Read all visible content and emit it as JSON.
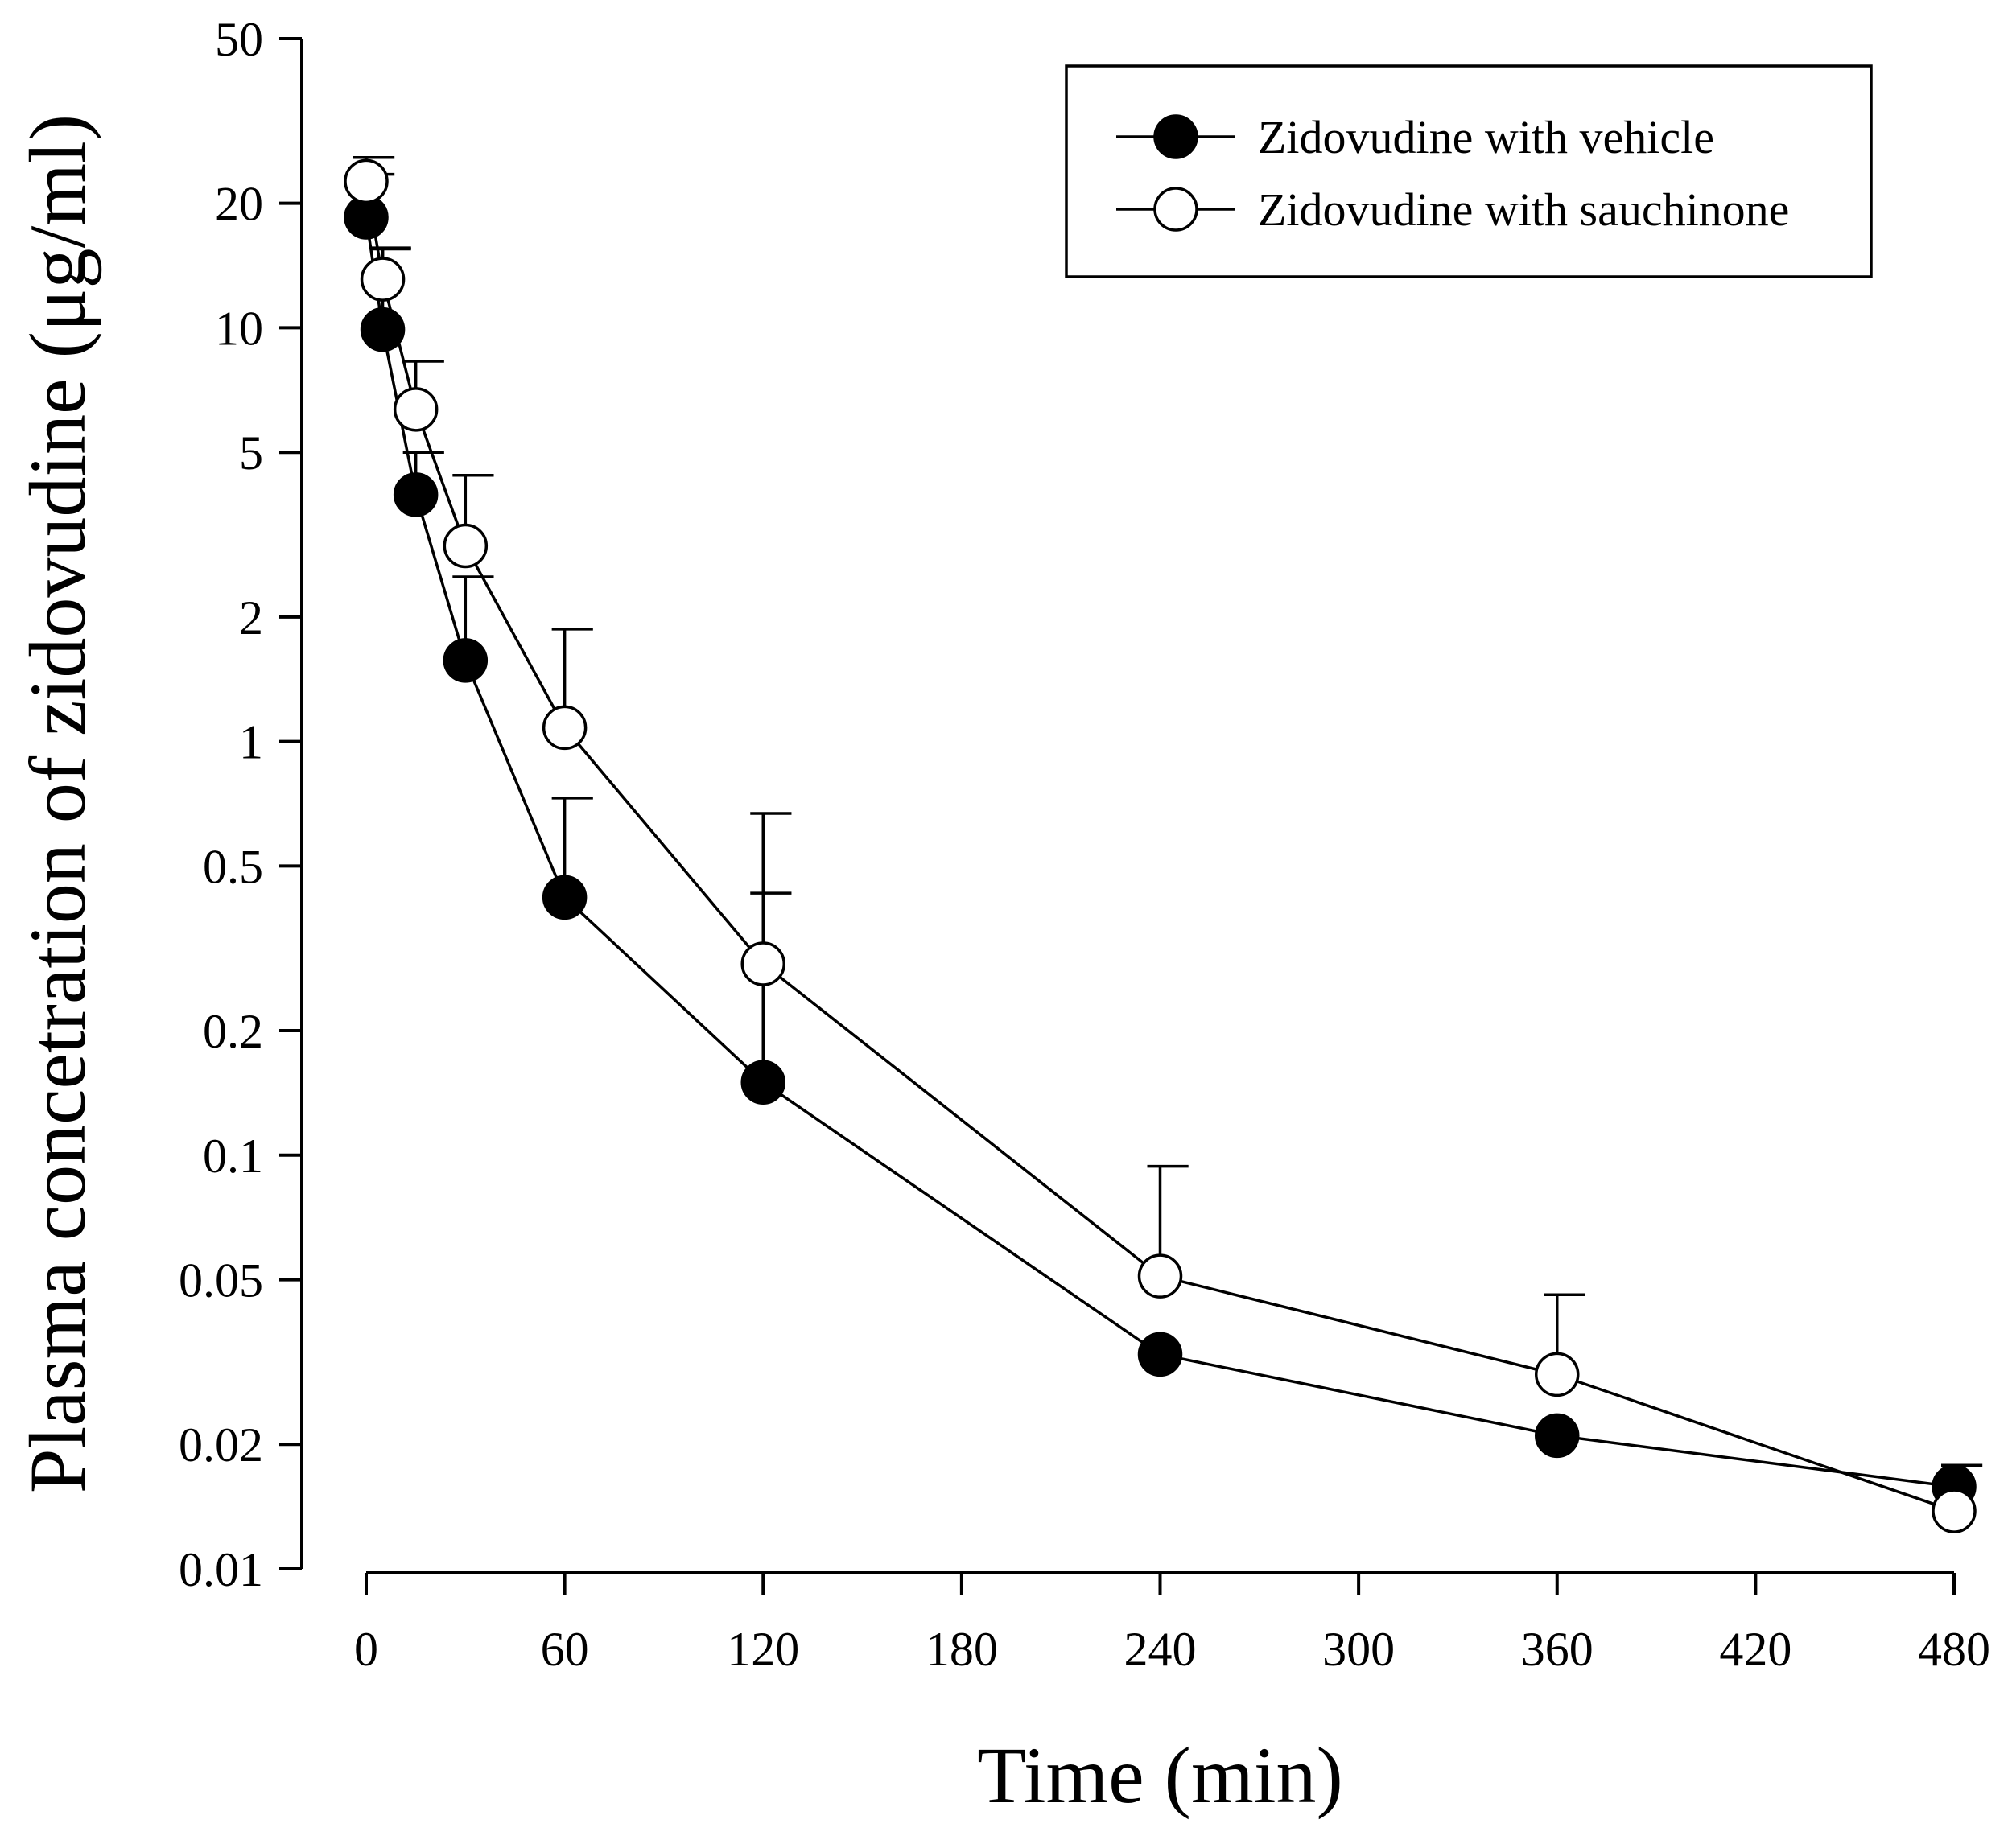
{
  "chart_data": {
    "type": "line",
    "y_scale": "log",
    "xlabel": "Time (min)",
    "ylabel": "Plasma concetration of zidovudine (μg/ml)",
    "xlim": [
      0,
      480
    ],
    "ylim": [
      0.01,
      50
    ],
    "x_ticks": [
      0,
      60,
      120,
      180,
      240,
      300,
      360,
      420,
      480
    ],
    "x_tick_labels": [
      "0",
      "60",
      "120",
      "180",
      "240",
      "300",
      "360",
      "420",
      "480"
    ],
    "y_ticks": [
      0.01,
      0.02,
      0.05,
      0.1,
      0.2,
      0.5,
      1,
      2,
      5,
      10,
      20,
      50
    ],
    "y_tick_labels": [
      "0.01",
      "0.02",
      "0.05",
      "0.1",
      "0.2",
      "0.5",
      "1",
      "2",
      "5",
      "10",
      "20",
      "50"
    ],
    "legend_position": "top-right",
    "series": [
      {
        "name": "Zidovudine with vehicle",
        "marker": "filled-circle",
        "color": "#000000",
        "x": [
          0,
          5,
          15,
          30,
          60,
          120,
          240,
          360,
          480
        ],
        "y": [
          18.5,
          9.9,
          3.95,
          1.57,
          0.42,
          0.15,
          0.033,
          0.021,
          0.0158
        ],
        "error_upper": [
          23.5,
          15.5,
          5.0,
          2.5,
          0.73,
          0.43,
          0.033,
          0.021,
          0.0178
        ]
      },
      {
        "name": "Zidovudine with sauchinone",
        "marker": "open-circle",
        "color": "#000000",
        "x": [
          0,
          5,
          15,
          30,
          60,
          120,
          240,
          360,
          480
        ],
        "y": [
          22.6,
          13.1,
          6.35,
          2.97,
          1.08,
          0.29,
          0.051,
          0.0295,
          0.0138
        ],
        "error_upper": [
          25.8,
          15.6,
          8.3,
          4.4,
          1.87,
          0.67,
          0.094,
          0.046,
          0.0138
        ]
      }
    ]
  }
}
